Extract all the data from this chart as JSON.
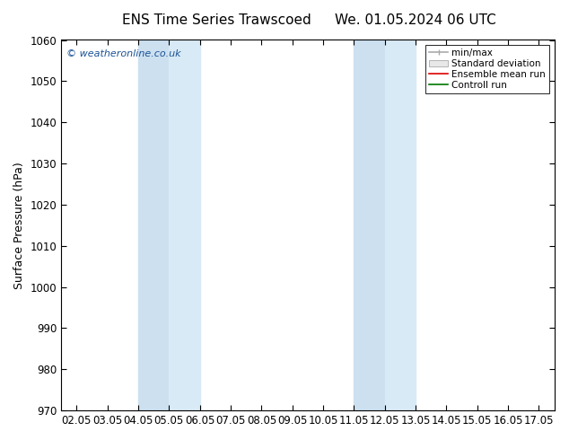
{
  "title_left": "ENS Time Series Trawscoed",
  "title_right": "We. 01.05.2024 06 UTC",
  "ylabel": "Surface Pressure (hPa)",
  "ylim": [
    970,
    1060
  ],
  "yticks": [
    970,
    980,
    990,
    1000,
    1010,
    1020,
    1030,
    1040,
    1050,
    1060
  ],
  "x_labels": [
    "02.05",
    "03.05",
    "04.05",
    "05.05",
    "06.05",
    "07.05",
    "08.05",
    "09.05",
    "10.05",
    "11.05",
    "12.05",
    "13.05",
    "14.05",
    "15.05",
    "16.05",
    "17.05"
  ],
  "shaded_bands": [
    {
      "xstart": 2,
      "xend": 3,
      "color": "#cce0f0",
      "alpha": 1.0
    },
    {
      "xstart": 3,
      "xend": 4,
      "color": "#d8eaf5",
      "alpha": 1.0
    },
    {
      "xstart": 9,
      "xend": 10,
      "color": "#cce0f0",
      "alpha": 1.0
    },
    {
      "xstart": 10,
      "xend": 11,
      "color": "#d8eaf5",
      "alpha": 1.0
    }
  ],
  "watermark": "© weatheronline.co.uk",
  "watermark_color": "#1a5296",
  "bg_color": "#ffffff",
  "plot_bg_color": "#ffffff",
  "legend_labels": [
    "min/max",
    "Standard deviation",
    "Ensemble mean run",
    "Controll run"
  ],
  "legend_colors": [
    "#aaaaaa",
    "#cccccc",
    "#dd0000",
    "#007700"
  ],
  "title_fontsize": 11,
  "tick_fontsize": 8.5,
  "ylabel_fontsize": 9,
  "legend_fontsize": 7.5
}
